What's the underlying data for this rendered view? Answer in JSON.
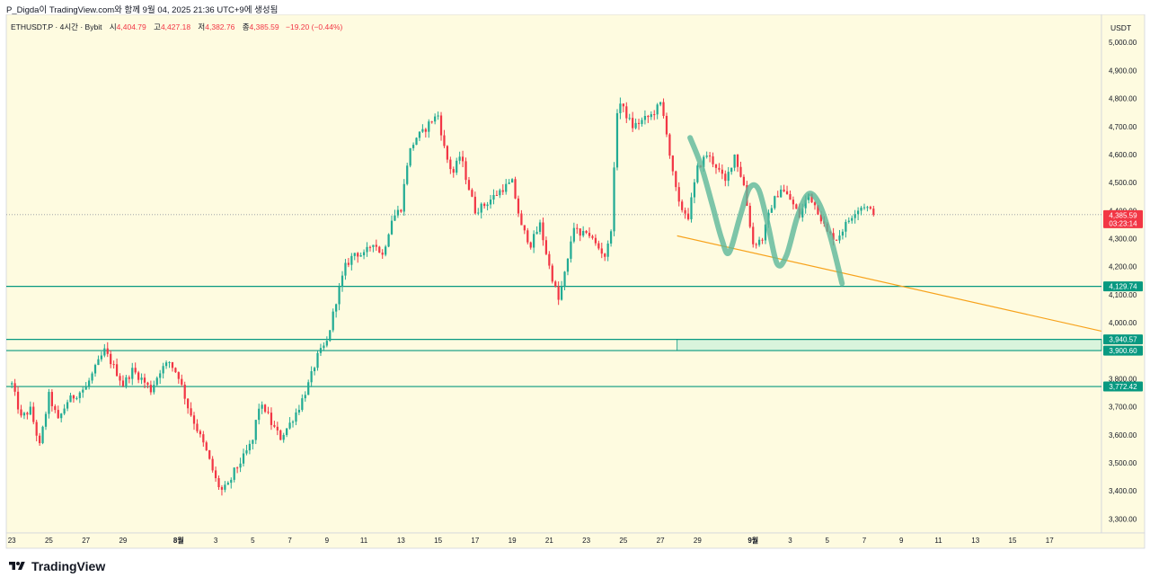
{
  "header": {
    "line": "P_Digda이 TradingView.com와 함께 9월 04, 2025 21:36 UTC+9에 생성됨"
  },
  "legend": {
    "symbol": "ETHUSDT.P · 4시간 · Bybit",
    "open_label": "시",
    "open_value": "4,404.79",
    "high_label": "고",
    "high_value": "4,427.18",
    "low_label": "저",
    "low_value": "4,382.76",
    "close_label": "종",
    "close_value": "4,385.59",
    "change": "−19.20 (−0.44%)"
  },
  "currency": "USDT",
  "brand": "TradingView",
  "colors": {
    "background": "#fefbe0",
    "up": "#22ab94",
    "down": "#f23645",
    "level_line": "#089981",
    "trend_line": "#f7a21b",
    "pattern_stroke": "#5cb89a",
    "zone_fill": "#d9f4dc",
    "last_price": "#f23645"
  },
  "chart_data": {
    "type": "candlestick",
    "ylim": [
      3250,
      5100
    ],
    "y_ticks": [
      "5,000.00",
      "4,900.00",
      "4,800.00",
      "4,700.00",
      "4,600.00",
      "4,500.00",
      "4,400.00",
      "4,300.00",
      "4,200.00",
      "4,100.00",
      "4,000.00",
      "3,900.00",
      "3,800.00",
      "3,700.00",
      "3,600.00",
      "3,500.00",
      "3,400.00",
      "3,300.00"
    ],
    "y_tick_values": [
      5000,
      4900,
      4800,
      4700,
      4600,
      4500,
      4400,
      4300,
      4200,
      4100,
      4000,
      3900,
      3800,
      3700,
      3600,
      3500,
      3400,
      3300
    ],
    "x_range_days": [
      -0.3,
      58.8
    ],
    "x_ticks": [
      {
        "day": 0,
        "label": "23"
      },
      {
        "day": 2,
        "label": "25"
      },
      {
        "day": 4,
        "label": "27"
      },
      {
        "day": 6,
        "label": "29"
      },
      {
        "day": 9,
        "label": "8월"
      },
      {
        "day": 11,
        "label": "3"
      },
      {
        "day": 13,
        "label": "5"
      },
      {
        "day": 15,
        "label": "7"
      },
      {
        "day": 17,
        "label": "9"
      },
      {
        "day": 19,
        "label": "11"
      },
      {
        "day": 21,
        "label": "13"
      },
      {
        "day": 23,
        "label": "15"
      },
      {
        "day": 25,
        "label": "17"
      },
      {
        "day": 27,
        "label": "19"
      },
      {
        "day": 29,
        "label": "21"
      },
      {
        "day": 31,
        "label": "23"
      },
      {
        "day": 33,
        "label": "25"
      },
      {
        "day": 35,
        "label": "27"
      },
      {
        "day": 37,
        "label": "29"
      },
      {
        "day": 40,
        "label": "9월"
      },
      {
        "day": 42,
        "label": "3"
      },
      {
        "day": 44,
        "label": "5"
      },
      {
        "day": 46,
        "label": "7"
      },
      {
        "day": 48,
        "label": "9"
      },
      {
        "day": 50,
        "label": "11"
      },
      {
        "day": 52,
        "label": "13"
      },
      {
        "day": 54,
        "label": "15"
      },
      {
        "day": 56,
        "label": "17"
      }
    ],
    "anchors": [
      [
        0,
        3780
      ],
      [
        0.5,
        3660
      ],
      [
        1,
        3690
      ],
      [
        1.5,
        3560
      ],
      [
        2,
        3740
      ],
      [
        2.5,
        3650
      ],
      [
        3,
        3720
      ],
      [
        4,
        3770
      ],
      [
        4.6,
        3850
      ],
      [
        5,
        3900
      ],
      [
        5.6,
        3830
      ],
      [
        6,
        3780
      ],
      [
        6.5,
        3830
      ],
      [
        7,
        3800
      ],
      [
        7.5,
        3760
      ],
      [
        8,
        3830
      ],
      [
        8.5,
        3860
      ],
      [
        9,
        3810
      ],
      [
        9.5,
        3700
      ],
      [
        10,
        3620
      ],
      [
        10.5,
        3540
      ],
      [
        11,
        3440
      ],
      [
        11.3,
        3400
      ],
      [
        11.7,
        3420
      ],
      [
        12,
        3470
      ],
      [
        12.5,
        3520
      ],
      [
        13,
        3580
      ],
      [
        13.3,
        3700
      ],
      [
        13.7,
        3690
      ],
      [
        14,
        3640
      ],
      [
        14.5,
        3590
      ],
      [
        15,
        3640
      ],
      [
        15.5,
        3700
      ],
      [
        16,
        3780
      ],
      [
        16.5,
        3880
      ],
      [
        17,
        3930
      ],
      [
        17.5,
        4080
      ],
      [
        18,
        4200
      ],
      [
        18.5,
        4250
      ],
      [
        19,
        4240
      ],
      [
        19.5,
        4290
      ],
      [
        20,
        4240
      ],
      [
        20.5,
        4370
      ],
      [
        21,
        4410
      ],
      [
        21.4,
        4600
      ],
      [
        21.8,
        4660
      ],
      [
        22.2,
        4680
      ],
      [
        22.6,
        4720
      ],
      [
        23,
        4740
      ],
      [
        23.4,
        4600
      ],
      [
        23.8,
        4530
      ],
      [
        24.2,
        4600
      ],
      [
        24.5,
        4520
      ],
      [
        25,
        4400
      ],
      [
        25.5,
        4420
      ],
      [
        26,
        4450
      ],
      [
        26.5,
        4480
      ],
      [
        27,
        4500
      ],
      [
        27.5,
        4340
      ],
      [
        28,
        4280
      ],
      [
        28.5,
        4350
      ],
      [
        29,
        4200
      ],
      [
        29.5,
        4080
      ],
      [
        30,
        4220
      ],
      [
        30.3,
        4350
      ],
      [
        30.7,
        4300
      ],
      [
        31,
        4330
      ],
      [
        31.5,
        4280
      ],
      [
        32,
        4240
      ],
      [
        32.3,
        4300
      ],
      [
        32.5,
        4540
      ],
      [
        32.7,
        4800
      ],
      [
        33,
        4760
      ],
      [
        33.5,
        4700
      ],
      [
        34,
        4720
      ],
      [
        34.5,
        4740
      ],
      [
        35,
        4780
      ],
      [
        35.3,
        4700
      ],
      [
        35.6,
        4550
      ],
      [
        36,
        4420
      ],
      [
        36.5,
        4380
      ],
      [
        37,
        4550
      ],
      [
        37.5,
        4600
      ],
      [
        38,
        4560
      ],
      [
        38.5,
        4500
      ],
      [
        39,
        4600
      ],
      [
        39.5,
        4490
      ],
      [
        40,
        4280
      ],
      [
        40.5,
        4300
      ],
      [
        41,
        4420
      ],
      [
        41.5,
        4480
      ],
      [
        42,
        4440
      ],
      [
        42.5,
        4380
      ],
      [
        43,
        4460
      ],
      [
        43.5,
        4400
      ],
      [
        44,
        4320
      ],
      [
        44.5,
        4300
      ],
      [
        45,
        4350
      ],
      [
        45.5,
        4400
      ],
      [
        46,
        4420
      ],
      [
        46.5,
        4385.59
      ]
    ],
    "levels": [
      {
        "value": 4129.74,
        "label": "4,129.74"
      },
      {
        "value": 3940.57,
        "label": "3,940.57"
      },
      {
        "value": 3900.6,
        "label": "3,900.60"
      },
      {
        "value": 3772.42,
        "label": "3,772.42"
      }
    ],
    "zone": {
      "from_day": 35.9,
      "low": 3900.6,
      "high": 3940.57
    },
    "trendline": [
      [
        35.9,
        4310
      ],
      [
        58.8,
        3970
      ]
    ],
    "pattern_path": [
      [
        36.6,
        4660
      ],
      [
        37.2,
        4560
      ],
      [
        37.8,
        4420
      ],
      [
        38.3,
        4300
      ],
      [
        38.7,
        4250
      ],
      [
        39.3,
        4380
      ],
      [
        39.8,
        4480
      ],
      [
        40.3,
        4475
      ],
      [
        40.8,
        4350
      ],
      [
        41.3,
        4210
      ],
      [
        41.8,
        4240
      ],
      [
        42.4,
        4380
      ],
      [
        43.0,
        4460
      ],
      [
        43.6,
        4420
      ],
      [
        44.2,
        4300
      ],
      [
        44.8,
        4140
      ]
    ],
    "last_price": {
      "value": 4385.59,
      "label": "4,385.59",
      "countdown": "03:23:14"
    }
  }
}
